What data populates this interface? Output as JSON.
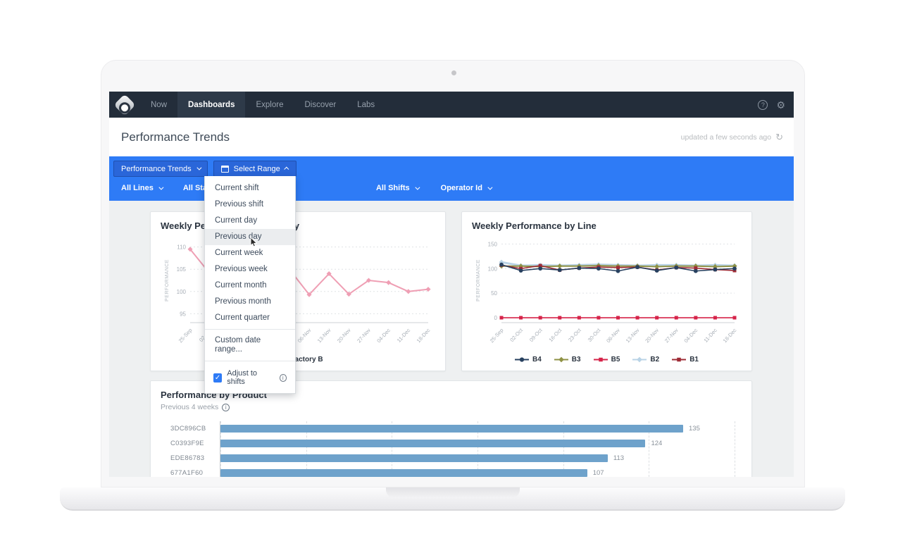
{
  "colors": {
    "accent": "#2e7bf6",
    "filter_button_bg": "#2a66d9",
    "filter_button_border": "#1f4fae",
    "navbar_bg": "#232d3a",
    "navbar_active_bg": "#2e3a49",
    "page_bg": "#eef0f1",
    "card_bg": "#ffffff",
    "bar_color": "#6ea2cb"
  },
  "navbar": {
    "items": [
      {
        "label": "Now",
        "active": false
      },
      {
        "label": "Dashboards",
        "active": true
      },
      {
        "label": "Explore",
        "active": false
      },
      {
        "label": "Discover",
        "active": false
      },
      {
        "label": "Labs",
        "active": false
      }
    ],
    "help_glyph": "?",
    "gear_glyph": "⚙"
  },
  "header": {
    "title": "Performance Trends",
    "updated": "updated a few seconds ago",
    "refresh_glyph": "↻"
  },
  "filter_bar": {
    "view_selector": "Performance Trends",
    "range_selector": "Select Range",
    "filters": [
      "All Lines",
      "All States",
      "All Shifts",
      "Operator Id"
    ]
  },
  "range_menu": {
    "items": [
      "Current shift",
      "Previous shift",
      "Current day",
      "Previous day",
      "Current week",
      "Previous week",
      "Current month",
      "Previous month",
      "Current quarter"
    ],
    "hovered_item": "Previous day",
    "custom_item": "Custom date range...",
    "adjust_label": "Adjust to shifts",
    "adjust_checked": true,
    "check_glyph": "✓",
    "info_glyph": "i"
  },
  "chart_data": [
    {
      "type": "line",
      "title": "Weekly Performance by Factory",
      "ylabel": "PERFORMANCE",
      "x": [
        "25-Sep",
        "02-Oct",
        "09-Oct",
        "16-Oct",
        "23-Oct",
        "30-Oct",
        "06-Nov",
        "13-Nov",
        "20-Nov",
        "27-Nov",
        "04-Dec",
        "11-Dec",
        "18-Dec"
      ],
      "ylim": [
        93,
        112
      ],
      "yticks": [
        95,
        100,
        105,
        110
      ],
      "grid": true,
      "legend_position": "bottom",
      "series": [
        {
          "name": "Factory B",
          "color": "#ef9fb4",
          "marker": "diamond",
          "line_width": 2,
          "values": [
            109.5,
            104,
            106,
            103.5,
            100,
            105,
            99.3,
            104,
            99.4,
            102.5,
            102,
            100,
            100.5
          ]
        }
      ]
    },
    {
      "type": "line",
      "title": "Weekly Performance by Line",
      "ylabel": "PERFORMANCE",
      "x": [
        "25-Sep",
        "02-Oct",
        "09-Oct",
        "16-Oct",
        "23-Oct",
        "30-Oct",
        "06-Nov",
        "13-Nov",
        "20-Nov",
        "27-Nov",
        "04-Dec",
        "11-Dec",
        "18-Dec"
      ],
      "ylim": [
        -10,
        162
      ],
      "yticks": [
        0,
        50,
        100,
        150
      ],
      "grid": true,
      "legend_position": "bottom",
      "draw_order": [
        3,
        1,
        4,
        0,
        2
      ],
      "series": [
        {
          "name": "B4",
          "color": "#27405f",
          "marker": "circle",
          "line_width": 1.6,
          "values": [
            108,
            96,
            100,
            97,
            101,
            100,
            95,
            103,
            96,
            102,
            95,
            98,
            100
          ]
        },
        {
          "name": "B3",
          "color": "#8f9245",
          "marker": "diamond",
          "line_width": 2,
          "values": [
            105,
            105,
            104,
            105,
            105,
            106,
            105,
            105,
            104,
            105,
            105,
            104,
            105
          ]
        },
        {
          "name": "B5",
          "color": "#d62349",
          "marker": "square",
          "line_width": 1.6,
          "values": [
            0,
            0,
            0,
            0,
            0,
            0,
            0,
            0,
            0,
            0,
            0,
            0,
            0
          ]
        },
        {
          "name": "B2",
          "color": "#b9d3e6",
          "marker": "diamond",
          "line_width": 3,
          "values": [
            113,
            106,
            107,
            106,
            107,
            108,
            107,
            106,
            107,
            107,
            106,
            107,
            106
          ]
        },
        {
          "name": "B1",
          "color": "#9e2b35",
          "marker": "square",
          "line_width": 1.6,
          "values": [
            107,
            100,
            106,
            97,
            101,
            103,
            102,
            103,
            97,
            102,
            101,
            98,
            96
          ]
        }
      ]
    },
    {
      "type": "bar",
      "orientation": "horizontal",
      "title": "Performance by Product",
      "subtitle": "Previous 4 weeks",
      "categories": [
        "3DC896CB",
        "C0393F9E",
        "EDE86783",
        "677A1F60"
      ],
      "values": [
        135,
        124,
        113,
        107
      ],
      "xlim": [
        0,
        150
      ],
      "grid_step": 25
    }
  ]
}
